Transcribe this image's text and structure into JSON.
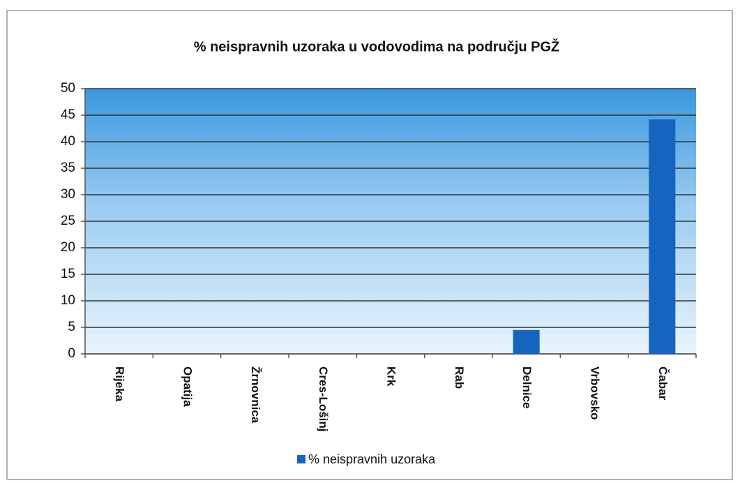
{
  "chart_data": {
    "type": "bar",
    "title": "% neispravnih uzoraka u vodovodima na području PGŽ",
    "categories": [
      "Rijeka",
      "Opatija",
      "Žrnovnica",
      "Cres-Lošinj",
      "Krk",
      "Rab",
      "Delnice",
      "Vrbovsko",
      "Čabar"
    ],
    "series": [
      {
        "name": "% neispravnih uzoraka",
        "color": "#1565c0",
        "values": [
          0,
          0,
          0,
          0,
          0,
          0,
          4.5,
          0,
          44.2
        ]
      }
    ],
    "ylim": [
      0,
      50
    ],
    "yticks": [
      0,
      5,
      10,
      15,
      20,
      25,
      30,
      35,
      40,
      45,
      50
    ],
    "grid": true,
    "legend": "bottom"
  }
}
